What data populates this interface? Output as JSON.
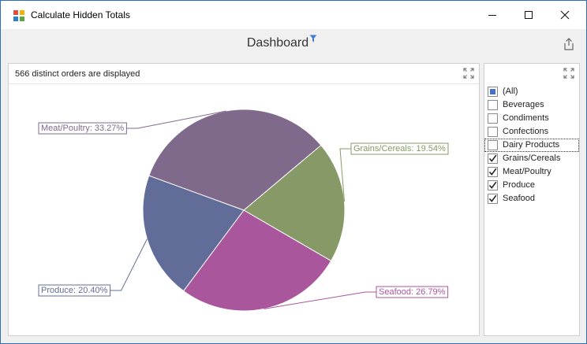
{
  "window": {
    "title": "Calculate Hidden Totals",
    "minimize_icon": "minimize-icon",
    "maximize_icon": "maximize-icon",
    "close_icon": "close-icon"
  },
  "dashboard": {
    "title": "Dashboard",
    "title_icon": "filter-icon",
    "export_icon": "export-icon"
  },
  "chart_panel": {
    "caption": "566 distinct orders are displayed",
    "maximize_icon": "maximize-icon"
  },
  "filter_panel": {
    "maximize_icon": "maximize-icon",
    "items": [
      {
        "label": "(All)",
        "state": "indeterminate"
      },
      {
        "label": "Beverages",
        "state": "unchecked"
      },
      {
        "label": "Condiments",
        "state": "unchecked"
      },
      {
        "label": "Confections",
        "state": "unchecked"
      },
      {
        "label": "Dairy Products",
        "state": "unchecked",
        "focused": true
      },
      {
        "label": "Grains/Cereals",
        "state": "checked"
      },
      {
        "label": "Meat/Poultry",
        "state": "checked"
      },
      {
        "label": "Produce",
        "state": "checked"
      },
      {
        "label": "Seafood",
        "state": "checked"
      }
    ]
  },
  "chart_data": {
    "type": "pie",
    "title": "",
    "slices": [
      {
        "name": "Grains/Cereals",
        "value": 19.54,
        "label": "Grains/Cereals: 19.54%",
        "color": "#869966"
      },
      {
        "name": "Seafood",
        "value": 26.79,
        "label": "Seafood: 26.79%",
        "color": "#aa569c"
      },
      {
        "name": "Produce",
        "value": 20.4,
        "label": "Produce: 20.40%",
        "color": "#616d98"
      },
      {
        "name": "Meat/Poultry",
        "value": 33.27,
        "label": "Meat/Poultry: 33.27%",
        "color": "#806a8c"
      }
    ]
  }
}
